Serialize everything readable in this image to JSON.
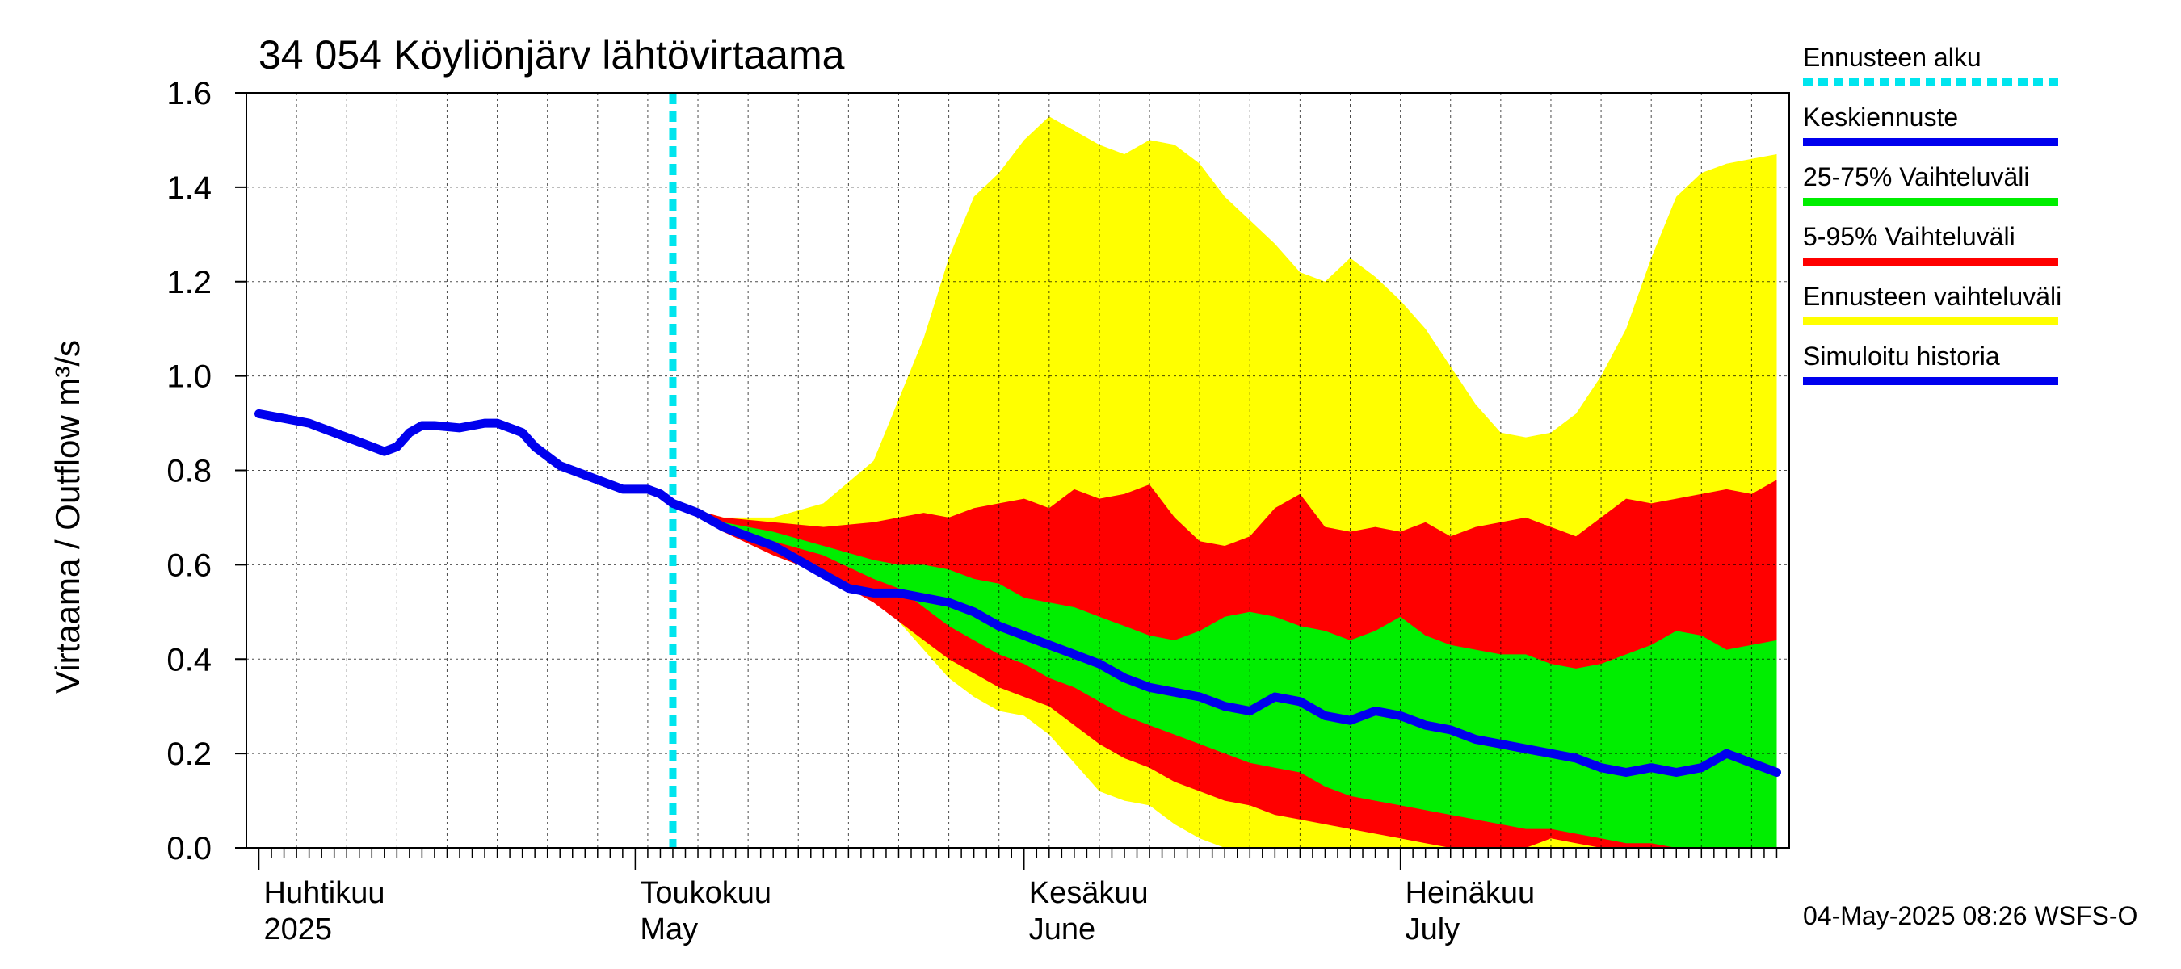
{
  "title": "34 054 Köyliönjärv lähtövirtaama",
  "ylabel": "Virtaama / Outflow    m³/s",
  "footer": "04-May-2025 08:26 WSFS-O",
  "months": [
    {
      "fi": "Huhtikuu",
      "en": "2025"
    },
    {
      "fi": "Toukokuu",
      "en": "May"
    },
    {
      "fi": "Kesäkuu",
      "en": "June"
    },
    {
      "fi": "Heinäkuu",
      "en": "July"
    }
  ],
  "legend": [
    {
      "label": "Ennusteen alku",
      "color": "#00e5ee",
      "style": "dotted"
    },
    {
      "label": "Keskiennuste",
      "color": "#0000ee",
      "style": "solid"
    },
    {
      "label": "25-75% Vaihteluväli",
      "color": "#00ee00",
      "style": "solid"
    },
    {
      "label": "5-95% Vaihteluväli",
      "color": "#ff0000",
      "style": "solid"
    },
    {
      "label": "Ennusteen vaihteluväli",
      "color": "#ffff00",
      "style": "solid"
    },
    {
      "label": "Simuloitu historia",
      "color": "#0000ee",
      "style": "solid"
    }
  ],
  "colors": {
    "forecast_start": "#00e5ee",
    "mean": "#0000ee",
    "band_25_75": "#00ee00",
    "band_5_95": "#ff0000",
    "band_full": "#ffff00",
    "history": "#0000ee"
  },
  "chart_data": {
    "type": "area",
    "title": "34 054 Köyliönjärv lähtövirtaama",
    "ylabel": "Virtaama / Outflow m³/s",
    "xlabel": "",
    "x_range": [
      "2025-04-01",
      "2025-07-31"
    ],
    "ylim": [
      0.0,
      1.6
    ],
    "y_ticks": [
      "0.0",
      "0.2",
      "0.4",
      "0.6",
      "0.8",
      "1.0",
      "1.2",
      "1.4",
      "1.6"
    ],
    "grid": true,
    "legend_position": "right",
    "forecast_start": "2025-05-04",
    "series": [
      {
        "name": "Simuloitu historia",
        "x": [
          "2025-04-01",
          "2025-04-03",
          "2025-04-05",
          "2025-04-07",
          "2025-04-09",
          "2025-04-11",
          "2025-04-12",
          "2025-04-13",
          "2025-04-14",
          "2025-04-15",
          "2025-04-17",
          "2025-04-19",
          "2025-04-20",
          "2025-04-22",
          "2025-04-23",
          "2025-04-25",
          "2025-04-27",
          "2025-04-29",
          "2025-04-30",
          "2025-05-01",
          "2025-05-02",
          "2025-05-03",
          "2025-05-04"
        ],
        "y": [
          0.92,
          0.91,
          0.9,
          0.88,
          0.86,
          0.84,
          0.85,
          0.88,
          0.895,
          0.895,
          0.89,
          0.9,
          0.9,
          0.88,
          0.85,
          0.81,
          0.79,
          0.77,
          0.76,
          0.76,
          0.76,
          0.75,
          0.73
        ]
      },
      {
        "name": "Keskiennuste",
        "x": [
          "2025-05-04",
          "2025-05-06",
          "2025-05-08",
          "2025-05-10",
          "2025-05-12",
          "2025-05-14",
          "2025-05-16",
          "2025-05-18",
          "2025-05-20",
          "2025-05-22",
          "2025-05-24",
          "2025-05-26",
          "2025-05-28",
          "2025-05-30",
          "2025-06-01",
          "2025-06-03",
          "2025-06-05",
          "2025-06-07",
          "2025-06-09",
          "2025-06-11",
          "2025-06-13",
          "2025-06-15",
          "2025-06-17",
          "2025-06-19",
          "2025-06-21",
          "2025-06-23",
          "2025-06-25",
          "2025-06-27",
          "2025-06-29",
          "2025-07-01",
          "2025-07-03",
          "2025-07-05",
          "2025-07-07",
          "2025-07-09",
          "2025-07-11",
          "2025-07-13",
          "2025-07-15",
          "2025-07-17",
          "2025-07-19",
          "2025-07-21",
          "2025-07-23",
          "2025-07-25",
          "2025-07-27",
          "2025-07-29",
          "2025-07-31"
        ],
        "y": [
          0.73,
          0.71,
          0.68,
          0.66,
          0.64,
          0.61,
          0.58,
          0.55,
          0.54,
          0.54,
          0.53,
          0.52,
          0.5,
          0.47,
          0.45,
          0.43,
          0.41,
          0.39,
          0.36,
          0.34,
          0.33,
          0.32,
          0.3,
          0.29,
          0.32,
          0.31,
          0.28,
          0.27,
          0.29,
          0.28,
          0.26,
          0.25,
          0.23,
          0.22,
          0.21,
          0.2,
          0.19,
          0.17,
          0.16,
          0.17,
          0.16,
          0.17,
          0.2,
          0.18,
          0.16
        ]
      }
    ],
    "bands": [
      {
        "name": "Ennusteen vaihteluväli",
        "x": [
          "2025-05-04",
          "2025-05-08",
          "2025-05-12",
          "2025-05-16",
          "2025-05-20",
          "2025-05-22",
          "2025-05-24",
          "2025-05-26",
          "2025-05-28",
          "2025-05-30",
          "2025-06-01",
          "2025-06-03",
          "2025-06-05",
          "2025-06-07",
          "2025-06-09",
          "2025-06-11",
          "2025-06-13",
          "2025-06-15",
          "2025-06-17",
          "2025-06-19",
          "2025-06-21",
          "2025-06-23",
          "2025-06-25",
          "2025-06-27",
          "2025-06-29",
          "2025-07-01",
          "2025-07-03",
          "2025-07-05",
          "2025-07-07",
          "2025-07-09",
          "2025-07-11",
          "2025-07-13",
          "2025-07-15",
          "2025-07-17",
          "2025-07-19",
          "2025-07-21",
          "2025-07-23",
          "2025-07-25",
          "2025-07-27",
          "2025-07-29",
          "2025-07-31"
        ],
        "upper": [
          0.73,
          0.7,
          0.7,
          0.73,
          0.82,
          0.95,
          1.08,
          1.25,
          1.38,
          1.43,
          1.5,
          1.55,
          1.52,
          1.49,
          1.47,
          1.5,
          1.49,
          1.45,
          1.38,
          1.33,
          1.28,
          1.22,
          1.2,
          1.25,
          1.21,
          1.16,
          1.1,
          1.02,
          0.94,
          0.88,
          0.87,
          0.88,
          0.92,
          1.0,
          1.1,
          1.25,
          1.38,
          1.43,
          1.45,
          1.46,
          1.47
        ],
        "lower": [
          0.73,
          0.68,
          0.64,
          0.6,
          0.55,
          0.48,
          0.42,
          0.36,
          0.32,
          0.29,
          0.28,
          0.24,
          0.18,
          0.12,
          0.1,
          0.09,
          0.05,
          0.02,
          0.0,
          0.0,
          0.0,
          0.0,
          0.0,
          0.0,
          0.0,
          0.0,
          0.0,
          0.0,
          0.0,
          0.0,
          0.0,
          0.0,
          0.0,
          0.0,
          0.0,
          0.0,
          0.0,
          0.0,
          0.0,
          0.0,
          0.0
        ]
      },
      {
        "name": "5-95% Vaihteluväli",
        "x": [
          "2025-05-04",
          "2025-05-08",
          "2025-05-12",
          "2025-05-16",
          "2025-05-20",
          "2025-05-22",
          "2025-05-24",
          "2025-05-26",
          "2025-05-28",
          "2025-05-30",
          "2025-06-01",
          "2025-06-03",
          "2025-06-05",
          "2025-06-07",
          "2025-06-09",
          "2025-06-11",
          "2025-06-13",
          "2025-06-15",
          "2025-06-17",
          "2025-06-19",
          "2025-06-21",
          "2025-06-23",
          "2025-06-25",
          "2025-06-27",
          "2025-06-29",
          "2025-07-01",
          "2025-07-03",
          "2025-07-05",
          "2025-07-07",
          "2025-07-09",
          "2025-07-11",
          "2025-07-13",
          "2025-07-15",
          "2025-07-17",
          "2025-07-19",
          "2025-07-21",
          "2025-07-23",
          "2025-07-25",
          "2025-07-27",
          "2025-07-29",
          "2025-07-31"
        ],
        "upper": [
          0.73,
          0.7,
          0.69,
          0.68,
          0.69,
          0.7,
          0.71,
          0.7,
          0.72,
          0.73,
          0.74,
          0.72,
          0.76,
          0.74,
          0.75,
          0.77,
          0.7,
          0.65,
          0.64,
          0.66,
          0.72,
          0.75,
          0.68,
          0.67,
          0.68,
          0.67,
          0.69,
          0.66,
          0.68,
          0.69,
          0.7,
          0.68,
          0.66,
          0.7,
          0.74,
          0.73,
          0.74,
          0.75,
          0.76,
          0.75,
          0.78
        ],
        "lower": [
          0.73,
          0.67,
          0.62,
          0.58,
          0.52,
          0.48,
          0.44,
          0.4,
          0.37,
          0.34,
          0.32,
          0.3,
          0.26,
          0.22,
          0.19,
          0.17,
          0.14,
          0.12,
          0.1,
          0.09,
          0.07,
          0.06,
          0.05,
          0.04,
          0.03,
          0.02,
          0.01,
          0.0,
          0.0,
          0.0,
          0.0,
          0.02,
          0.01,
          0.0,
          0.0,
          0.0,
          0.0,
          0.0,
          0.0,
          0.0,
          0.0
        ]
      },
      {
        "name": "25-75% Vaihteluväli",
        "x": [
          "2025-05-04",
          "2025-05-08",
          "2025-05-12",
          "2025-05-16",
          "2025-05-20",
          "2025-05-22",
          "2025-05-24",
          "2025-05-26",
          "2025-05-28",
          "2025-05-30",
          "2025-06-01",
          "2025-06-03",
          "2025-06-05",
          "2025-06-07",
          "2025-06-09",
          "2025-06-11",
          "2025-06-13",
          "2025-06-15",
          "2025-06-17",
          "2025-06-19",
          "2025-06-21",
          "2025-06-23",
          "2025-06-25",
          "2025-06-27",
          "2025-06-29",
          "2025-07-01",
          "2025-07-03",
          "2025-07-05",
          "2025-07-07",
          "2025-07-09",
          "2025-07-11",
          "2025-07-13",
          "2025-07-15",
          "2025-07-17",
          "2025-07-19",
          "2025-07-21",
          "2025-07-23",
          "2025-07-25",
          "2025-07-27",
          "2025-07-29",
          "2025-07-31"
        ],
        "upper": [
          0.73,
          0.69,
          0.67,
          0.64,
          0.61,
          0.6,
          0.6,
          0.59,
          0.57,
          0.56,
          0.53,
          0.52,
          0.51,
          0.49,
          0.47,
          0.45,
          0.44,
          0.46,
          0.49,
          0.5,
          0.49,
          0.47,
          0.46,
          0.44,
          0.46,
          0.49,
          0.45,
          0.43,
          0.42,
          0.41,
          0.41,
          0.39,
          0.38,
          0.39,
          0.41,
          0.43,
          0.46,
          0.45,
          0.42,
          0.43,
          0.44
        ],
        "lower": [
          0.73,
          0.68,
          0.65,
          0.62,
          0.57,
          0.55,
          0.51,
          0.47,
          0.44,
          0.41,
          0.39,
          0.36,
          0.34,
          0.31,
          0.28,
          0.26,
          0.24,
          0.22,
          0.2,
          0.18,
          0.17,
          0.16,
          0.13,
          0.11,
          0.1,
          0.09,
          0.08,
          0.07,
          0.06,
          0.05,
          0.04,
          0.04,
          0.03,
          0.02,
          0.01,
          0.01,
          0.0,
          0.0,
          0.0,
          0.0,
          0.0
        ]
      }
    ]
  }
}
